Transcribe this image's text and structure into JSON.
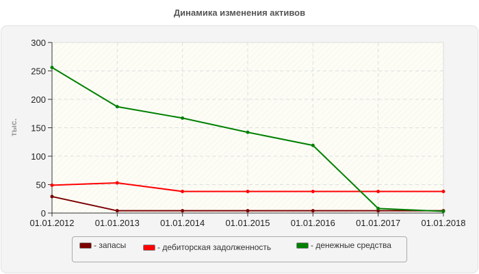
{
  "title": "Динамика изменения активов",
  "colors": {
    "zapasy": "#7b0000",
    "debitor": "#ff0000",
    "dengi": "#008000"
  },
  "legend": [
    {
      "label": "- запасы",
      "color": "#7b0000"
    },
    {
      "label": "- дебиторская задолженность",
      "color": "#ff0000"
    },
    {
      "label": "- денежные средства",
      "color": "#008000"
    }
  ],
  "chart_data": {
    "type": "line",
    "title": "Динамика изменения активов",
    "xlabel": "",
    "ylabel": "тыс.",
    "ylim": [
      0,
      300
    ],
    "yticks": [
      0,
      50,
      100,
      150,
      200,
      250,
      300
    ],
    "categories": [
      "01.01.2012",
      "01.01.2013",
      "01.01.2014",
      "01.01.2015",
      "01.01.2016",
      "01.01.2017",
      "01.01.2018"
    ],
    "series": [
      {
        "name": "запасы",
        "color": "#7b0000",
        "values": [
          29,
          4,
          4,
          4,
          4,
          4,
          4
        ]
      },
      {
        "name": "дебиторская задолженность",
        "color": "#ff0000",
        "values": [
          49,
          53,
          38,
          38,
          38,
          38,
          38
        ]
      },
      {
        "name": "денежные средства",
        "color": "#008000",
        "values": [
          256,
          187,
          167,
          142,
          119,
          8,
          3
        ]
      }
    ],
    "grid": true,
    "legend_position": "bottom"
  }
}
